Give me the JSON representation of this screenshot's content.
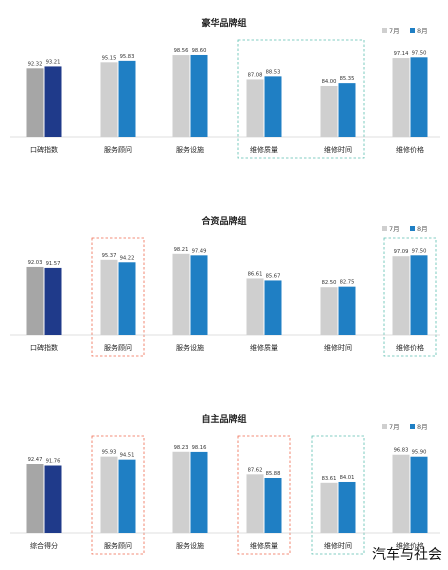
{
  "colors": {
    "jul_dark": "#a6a6a6",
    "aug_dark": "#1f3a8a",
    "jul_light": "#cfcfcf",
    "aug_light": "#1f7fc4",
    "highlight_red": "#ef6a4f",
    "highlight_teal": "#5bbfb0"
  },
  "watermark": "汽车与社会",
  "chart_data": [
    {
      "type": "bar",
      "title": "豪华品牌组",
      "categories": [
        "口碑指数",
        "服务顾问",
        "服务设施",
        "维修质量",
        "维修时间",
        "维修价格"
      ],
      "series": [
        {
          "name": "7月",
          "values": [
            92.32,
            95.15,
            98.56,
            87.08,
            84.0,
            97.14
          ]
        },
        {
          "name": "8月",
          "values": [
            93.21,
            95.83,
            98.6,
            88.53,
            85.35,
            97.5
          ]
        }
      ],
      "first_category_dark": true,
      "highlights": [
        {
          "from": 3,
          "to": 4,
          "color": "teal"
        }
      ],
      "legend_position": "top-right",
      "ylim": [
        60,
        100
      ]
    },
    {
      "type": "bar",
      "title": "合资品牌组",
      "categories": [
        "口碑指数",
        "服务顾问",
        "服务设施",
        "维修质量",
        "维修时间",
        "维修价格"
      ],
      "series": [
        {
          "name": "7月",
          "values": [
            92.03,
            95.37,
            98.21,
            86.61,
            82.5,
            97.09
          ]
        },
        {
          "name": "8月",
          "values": [
            91.57,
            94.22,
            97.49,
            85.67,
            82.75,
            97.5
          ]
        }
      ],
      "first_category_dark": true,
      "highlights": [
        {
          "from": 1,
          "to": 1,
          "color": "red"
        },
        {
          "from": 5,
          "to": 5,
          "color": "teal"
        }
      ],
      "legend_position": "top-right",
      "ylim": [
        60,
        100
      ]
    },
    {
      "type": "bar",
      "title": "自主品牌组",
      "categories": [
        "综合得分",
        "服务顾问",
        "服务设施",
        "维修质量",
        "维修时间",
        "维修价格"
      ],
      "series": [
        {
          "name": "7月",
          "values": [
            92.47,
            95.93,
            98.23,
            87.62,
            83.61,
            96.83
          ]
        },
        {
          "name": "8月",
          "values": [
            91.76,
            94.51,
            98.16,
            85.88,
            84.01,
            95.9
          ]
        }
      ],
      "first_category_dark": true,
      "highlights": [
        {
          "from": 1,
          "to": 1,
          "color": "red"
        },
        {
          "from": 3,
          "to": 3,
          "color": "red"
        },
        {
          "from": 4,
          "to": 4,
          "color": "teal"
        }
      ],
      "legend_position": "top-right",
      "ylim": [
        60,
        100
      ]
    }
  ]
}
